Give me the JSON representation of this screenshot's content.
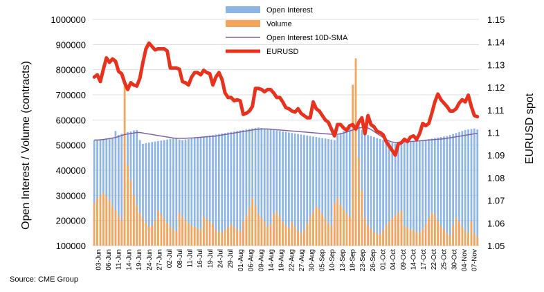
{
  "chart_data": {
    "type": "bar",
    "source": "Source: CME Group",
    "y_left": {
      "label": "Open Interest / Volume (contracts)",
      "min": 100000,
      "max": 1000000,
      "step": 100000,
      "ticks": [
        "100000",
        "200000",
        "300000",
        "400000",
        "500000",
        "600000",
        "700000",
        "800000",
        "900000",
        "1000000"
      ]
    },
    "y_right": {
      "label": "EURUSD spot",
      "min": 1.05,
      "max": 1.15,
      "step": 0.01,
      "ticks": [
        "1.05",
        "1.06",
        "1.07",
        "1.08",
        "1.09",
        "1.1",
        "1.11",
        "1.12",
        "1.13",
        "1.14",
        "1.15"
      ]
    },
    "x_tick_labels": [
      "03-Jun",
      "06-Jun",
      "11-Jun",
      "14-Jun",
      "19-Jun",
      "24-Jun",
      "27-Jun",
      "02-Jul",
      "08-Jul",
      "11-Jul",
      "16-Jul",
      "19-Jul",
      "24-Jul",
      "29-Jul",
      "01-Aug",
      "06-Aug",
      "09-Aug",
      "14-Aug",
      "19-Aug",
      "22-Aug",
      "27-Aug",
      "30-Aug",
      "05-Sep",
      "10-Sep",
      "13-Sep",
      "18-Sep",
      "23-Sep",
      "26-Sep",
      "01-Oct",
      "04-Oct",
      "09-Oct",
      "14-Oct",
      "17-Oct",
      "22-Oct",
      "25-Oct",
      "30-Oct",
      "04-Nov",
      "07-Nov"
    ],
    "legend": [
      "Open Interest",
      "Volume",
      "Open Interest 10D-SMA",
      "EURUSD"
    ],
    "colors": {
      "open_interest": "#8db6e6",
      "volume": "#f5a55a",
      "sma": "#8060a8",
      "eurusd": "#e8321e"
    },
    "series": [
      {
        "name": "Open Interest",
        "values": [
          520000,
          522000,
          521000,
          524000,
          526000,
          528000,
          530000,
          556000,
          540000,
          545000,
          548000,
          552000,
          554000,
          558000,
          560000,
          520000,
          505000,
          508000,
          510000,
          512000,
          514000,
          516000,
          518000,
          520000,
          522000,
          524000,
          526000,
          528000,
          522000,
          520000,
          522000,
          524000,
          526000,
          528000,
          530000,
          532000,
          534000,
          536000,
          538000,
          540000,
          542000,
          544000,
          546000,
          548000,
          550000,
          552000,
          554000,
          556000,
          558000,
          560000,
          562000,
          564000,
          566000,
          568000,
          570000,
          568000,
          566000,
          564000,
          562000,
          560000,
          558000,
          556000,
          554000,
          552000,
          550000,
          548000,
          546000,
          544000,
          542000,
          540000,
          538000,
          536000,
          534000,
          532000,
          530000,
          528000,
          526000,
          524000,
          522000,
          520000,
          540000,
          548000,
          556000,
          562000,
          568000,
          572000,
          576000,
          580000,
          560000,
          540000,
          540000,
          536000,
          532000,
          528000,
          524000,
          520000,
          516000,
          512000,
          508000,
          506000,
          504000,
          506000,
          508000,
          510000,
          512000,
          514000,
          516000,
          518000,
          520000,
          522000,
          524000,
          526000,
          528000,
          530000,
          532000,
          534000,
          536000,
          540000,
          544000,
          548000,
          552000,
          556000,
          560000,
          562000,
          564000,
          566000,
          562000
        ]
      },
      {
        "name": "Volume",
        "values": [
          270000,
          290000,
          300000,
          310000,
          295000,
          280000,
          260000,
          240000,
          220000,
          200000,
          750000,
          420000,
          360000,
          300000,
          260000,
          230000,
          210000,
          190000,
          175000,
          180000,
          200000,
          240000,
          225000,
          205000,
          190000,
          175000,
          165000,
          158000,
          230000,
          215000,
          200000,
          190000,
          180000,
          175000,
          168000,
          165000,
          215000,
          205000,
          195000,
          185000,
          160000,
          155000,
          150000,
          165000,
          175000,
          185000,
          175000,
          165000,
          158000,
          195000,
          220000,
          255000,
          290000,
          260000,
          225000,
          210000,
          195000,
          175000,
          185000,
          225000,
          235000,
          215000,
          195000,
          180000,
          170000,
          195000,
          175000,
          160000,
          150000,
          165000,
          190000,
          215000,
          235000,
          255000,
          245000,
          225000,
          205000,
          190000,
          180000,
          270000,
          290000,
          262000,
          245000,
          230000,
          215000,
          740000,
          845000,
          450000,
          320000,
          210000,
          180000,
          165000,
          155000,
          148000,
          145000,
          162000,
          182000,
          195000,
          208000,
          222000,
          232000,
          238000,
          178000,
          172000,
          165000,
          160000,
          155000,
          150000,
          165000,
          185000,
          210000,
          232000,
          226000,
          198000,
          180000,
          165000,
          150000,
          140000,
          180000,
          210000,
          195000,
          175000,
          160000,
          150000,
          195000,
          150000,
          135000
        ]
      },
      {
        "name": "Open Interest 10D-SMA",
        "values": [
          520000,
          520000,
          521000,
          522000,
          524000,
          526000,
          528000,
          530000,
          534000,
          538000,
          542000,
          544000,
          546000,
          548000,
          550000,
          550000,
          548000,
          546000,
          544000,
          542000,
          540000,
          538000,
          536000,
          534000,
          532000,
          530000,
          528000,
          527000,
          527000,
          527000,
          527000,
          528000,
          528000,
          529000,
          530000,
          531000,
          532000,
          533000,
          534000,
          535000,
          536000,
          538000,
          540000,
          542000,
          544000,
          546000,
          548000,
          550000,
          552000,
          554000,
          556000,
          558000,
          560000,
          562000,
          563000,
          564000,
          564000,
          564000,
          563000,
          562000,
          561000,
          560000,
          559000,
          558000,
          557000,
          556000,
          555000,
          554000,
          553000,
          552000,
          551000,
          550000,
          549000,
          548000,
          547000,
          546000,
          545000,
          544000,
          543000,
          542000,
          543000,
          545000,
          548000,
          552000,
          556000,
          560000,
          564000,
          568000,
          570000,
          570000,
          568000,
          562000,
          554000,
          546000,
          538000,
          530000,
          522000,
          516000,
          512000,
          510000,
          510000,
          511000,
          512000,
          513000,
          514000,
          515000,
          516000,
          517000,
          518000,
          519000,
          520000,
          521000,
          522000,
          523000,
          524000,
          525000,
          527000,
          529000,
          531000,
          533000,
          535000,
          537000,
          539000,
          541000,
          543000,
          545000,
          547000
        ]
      },
      {
        "name": "EURUSD",
        "values": [
          1.1245,
          1.1255,
          1.1225,
          1.128,
          1.133,
          1.131,
          1.1325,
          1.1315,
          1.127,
          1.126,
          1.122,
          1.119,
          1.122,
          1.121,
          1.1205,
          1.124,
          1.131,
          1.137,
          1.1395,
          1.138,
          1.1365,
          1.137,
          1.137,
          1.137,
          1.136,
          1.1285,
          1.1285,
          1.1285,
          1.128,
          1.1225,
          1.122,
          1.121,
          1.1245,
          1.1265,
          1.1265,
          1.1255,
          1.1275,
          1.1265,
          1.126,
          1.121,
          1.1245,
          1.1265,
          1.1235,
          1.1175,
          1.1155,
          1.1155,
          1.114,
          1.1145,
          1.114,
          1.108,
          1.1085,
          1.1095,
          1.1115,
          1.1195,
          1.1195,
          1.119,
          1.118,
          1.119,
          1.119,
          1.1175,
          1.1155,
          1.1155,
          1.1135,
          1.111,
          1.1105,
          1.1095,
          1.109,
          1.1105,
          1.1085,
          1.1075,
          1.1065,
          1.1065,
          1.1135,
          1.1105,
          1.1095,
          1.1075,
          1.1055,
          1.1045,
          1.1015,
          1.0985,
          1.1035,
          1.1035,
          1.102,
          1.101,
          1.103,
          1.1035,
          1.1015,
          1.1045,
          1.1065,
          1.0995,
          1.1075,
          1.1035,
          1.1025,
          1.1005,
          1.1,
          1.099,
          1.096,
          1.094,
          1.092,
          1.09,
          1.095,
          1.0955,
          1.097,
          1.096,
          1.098,
          1.0985,
          1.097,
          1.0995,
          1.104,
          1.103,
          1.104,
          1.1085,
          1.1135,
          1.117,
          1.1145,
          1.113,
          1.1115,
          1.1095,
          1.1095,
          1.1105,
          1.113,
          1.1145,
          1.1135,
          1.1165,
          1.1115,
          1.1075,
          1.107
        ]
      }
    ]
  }
}
